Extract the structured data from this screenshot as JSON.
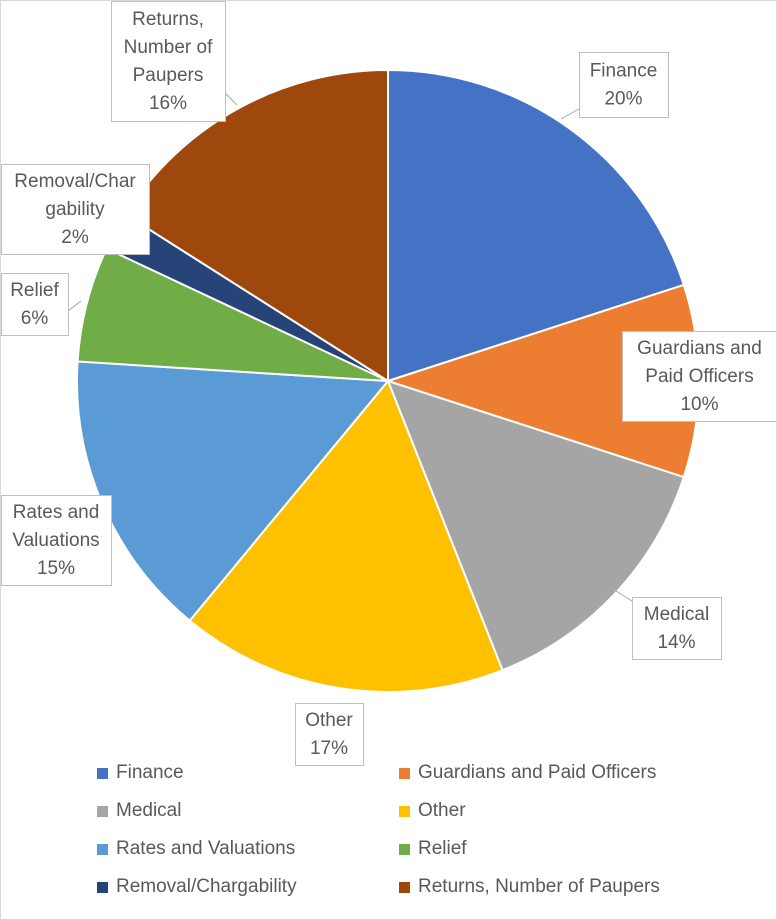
{
  "chart_data": {
    "type": "pie",
    "slices": [
      {
        "label": "Finance",
        "value": 20,
        "display": "20%",
        "color": "#4472C4"
      },
      {
        "label": "Guardians and Paid Officers",
        "value": 10,
        "display": "10%",
        "color": "#ED7D31"
      },
      {
        "label": "Medical",
        "value": 14,
        "display": "14%",
        "color": "#A5A5A5"
      },
      {
        "label": "Other",
        "value": 17,
        "display": "17%",
        "color": "#FFC000"
      },
      {
        "label": "Rates and Valuations",
        "value": 15,
        "display": "15%",
        "color": "#5B9BD5"
      },
      {
        "label": "Relief",
        "value": 6,
        "display": "6%",
        "color": "#70AD47"
      },
      {
        "label": "Removal/Chargability",
        "value": 2,
        "display": "2%",
        "color": "#264478"
      },
      {
        "label": "Returns, Number of Paupers",
        "value": 16,
        "display": "16%",
        "color": "#9E480E"
      }
    ],
    "data_label_lines": [
      [
        "Finance",
        "20%"
      ],
      [
        "Guardians and",
        "Paid Officers",
        "10%"
      ],
      [
        "Medical",
        "14%"
      ],
      [
        "Other",
        "17%"
      ],
      [
        "Rates and",
        "Valuations",
        "15%"
      ],
      [
        "Relief",
        "6%"
      ],
      [
        "Removal/Char",
        "gability",
        "2%"
      ],
      [
        "Returns,",
        "Number of",
        "Paupers",
        "16%"
      ]
    ],
    "legend_position": "bottom"
  }
}
